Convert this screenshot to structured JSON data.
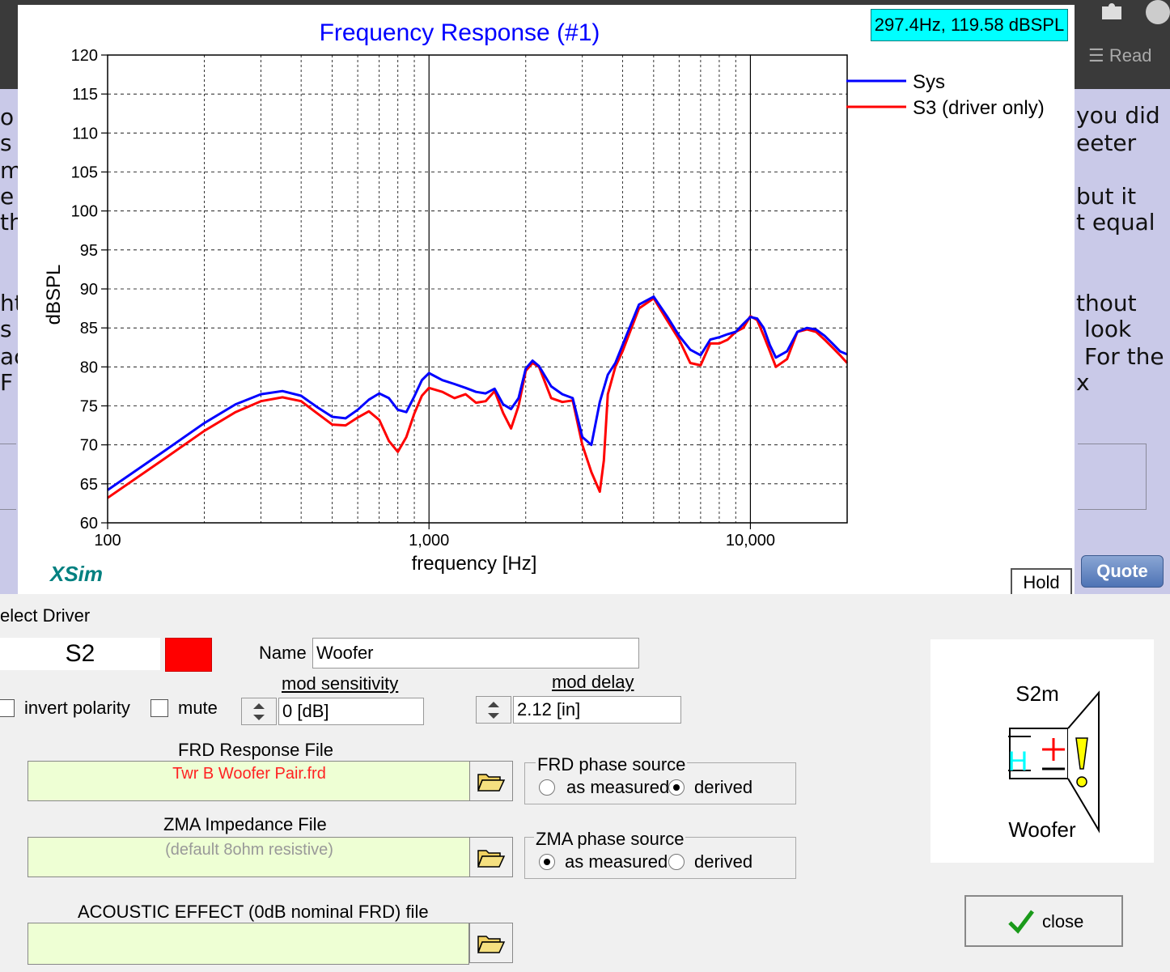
{
  "background_page": {
    "left_fragments": [
      "o",
      "s",
      "m",
      "e y",
      "th",
      "ht",
      "s",
      "ac",
      "F v"
    ],
    "right_fragments": [
      "you did",
      "eeter",
      "but it",
      "t equal",
      "thout",
      "look",
      "For the",
      "x"
    ],
    "read_label": "Read",
    "quote_button": "Quote"
  },
  "chart": {
    "title": "Frequency Response (#1)",
    "cursor_readout": "297.4Hz, 119.58 dBSPL",
    "brand": "XSim",
    "hold_button": "Hold",
    "colors": {
      "sys": "#0000ff",
      "driver": "#ff0000",
      "title": "#0000ff",
      "brand": "#008080"
    }
  },
  "chart_data": {
    "type": "line",
    "title": "Frequency Response (#1)",
    "xlabel": "frequency [Hz]",
    "ylabel": "dBSPL",
    "xscale": "log",
    "xlim": [
      100,
      20000
    ],
    "ylim": [
      60,
      120
    ],
    "xticks": [
      100,
      1000,
      10000
    ],
    "xtick_labels": [
      "100",
      "1,000",
      "10,000"
    ],
    "yticks": [
      60,
      65,
      70,
      75,
      80,
      85,
      90,
      95,
      100,
      105,
      110,
      115,
      120
    ],
    "grid": true,
    "legend_position": "top-right",
    "series": [
      {
        "name": "Sys",
        "color": "#0000ff",
        "x": [
          100,
          150,
          200,
          250,
          300,
          350,
          400,
          450,
          500,
          550,
          600,
          650,
          700,
          750,
          800,
          850,
          900,
          950,
          1000,
          1100,
          1200,
          1300,
          1400,
          1500,
          1600,
          1700,
          1800,
          1900,
          2000,
          2100,
          2200,
          2400,
          2600,
          2800,
          3000,
          3200,
          3400,
          3600,
          3800,
          4000,
          4500,
          5000,
          5500,
          6000,
          6500,
          7000,
          7500,
          8000,
          8500,
          9000,
          9500,
          10000,
          10500,
          11000,
          11500,
          12000,
          13000,
          14000,
          15000,
          16000,
          17000,
          18000,
          19000,
          20000
        ],
        "y": [
          64.2,
          69.2,
          72.8,
          75.2,
          76.5,
          76.9,
          76.3,
          74.8,
          73.6,
          73.4,
          74.5,
          75.8,
          76.6,
          76.0,
          74.5,
          74.2,
          76.2,
          78.3,
          79.2,
          78.3,
          77.8,
          77.3,
          76.8,
          76.6,
          77.2,
          75.2,
          74.6,
          76.0,
          79.8,
          80.8,
          80.1,
          77.5,
          76.5,
          76.0,
          71.0,
          70.0,
          75.5,
          79.0,
          80.5,
          82.8,
          88.0,
          89.0,
          86.5,
          84.0,
          82.2,
          81.5,
          83.5,
          83.8,
          84.2,
          84.5,
          85.5,
          86.4,
          86.2,
          85.0,
          82.8,
          81.2,
          82.0,
          84.5,
          85.0,
          84.8,
          84.0,
          83.0,
          82.0,
          81.6
        ]
      },
      {
        "name": "S3 (driver only)",
        "color": "#ff0000",
        "x": [
          100,
          150,
          200,
          250,
          300,
          350,
          400,
          450,
          500,
          550,
          600,
          650,
          700,
          750,
          800,
          850,
          900,
          950,
          1000,
          1100,
          1200,
          1300,
          1400,
          1500,
          1600,
          1700,
          1800,
          1900,
          2000,
          2100,
          2200,
          2400,
          2600,
          2800,
          3000,
          3200,
          3400,
          3500,
          3600,
          3800,
          4000,
          4500,
          5000,
          5500,
          6000,
          6500,
          7000,
          7500,
          8000,
          8500,
          9000,
          9500,
          10000,
          10500,
          11000,
          11500,
          12000,
          13000,
          14000,
          15000,
          16000,
          17000,
          18000,
          19000,
          20000
        ],
        "y": [
          63.2,
          68.2,
          71.8,
          74.2,
          75.6,
          76.1,
          75.6,
          74.0,
          72.6,
          72.5,
          73.5,
          74.3,
          73.2,
          70.5,
          69.1,
          71.0,
          74.0,
          76.3,
          77.3,
          76.8,
          76.0,
          76.5,
          75.4,
          75.6,
          76.9,
          74.1,
          72.1,
          75.0,
          79.5,
          80.5,
          80.0,
          76.0,
          75.5,
          75.7,
          70.0,
          66.5,
          64.0,
          68.0,
          76.5,
          80.0,
          82.0,
          87.5,
          88.8,
          86.0,
          83.5,
          80.5,
          80.2,
          83.0,
          83.0,
          83.5,
          84.5,
          85.0,
          86.5,
          86.0,
          84.0,
          82.0,
          80.0,
          81.0,
          84.5,
          84.8,
          84.5,
          83.5,
          82.5,
          81.5,
          80.5
        ]
      }
    ]
  },
  "dialog": {
    "title": "elect Driver",
    "driver_id": "S2",
    "driver_color": "#ff0000",
    "name_label": "Name",
    "name_value": "Woofer",
    "invert_polarity": "invert polarity",
    "mute": "mute",
    "mod_sensitivity_label": "mod sensitivity",
    "mod_sensitivity_value": "0 [dB]",
    "mod_delay_label": "mod delay",
    "mod_delay_value": "2.12 [in]",
    "frd_label": "FRD Response File",
    "frd_value": "Twr B Woofer Pair.frd",
    "frd_phase_title": "FRD phase source",
    "zma_label": "ZMA Impedance File",
    "zma_value": "(default 8ohm resistive)",
    "zma_phase_title": "ZMA phase source",
    "as_measured": "as measured",
    "derived": "derived",
    "acoustic_label": "ACOUSTIC EFFECT (0dB nominal FRD) file",
    "close_label": "close",
    "panel_id": "S2m",
    "panel_h": "H",
    "panel_name": "Woofer"
  }
}
